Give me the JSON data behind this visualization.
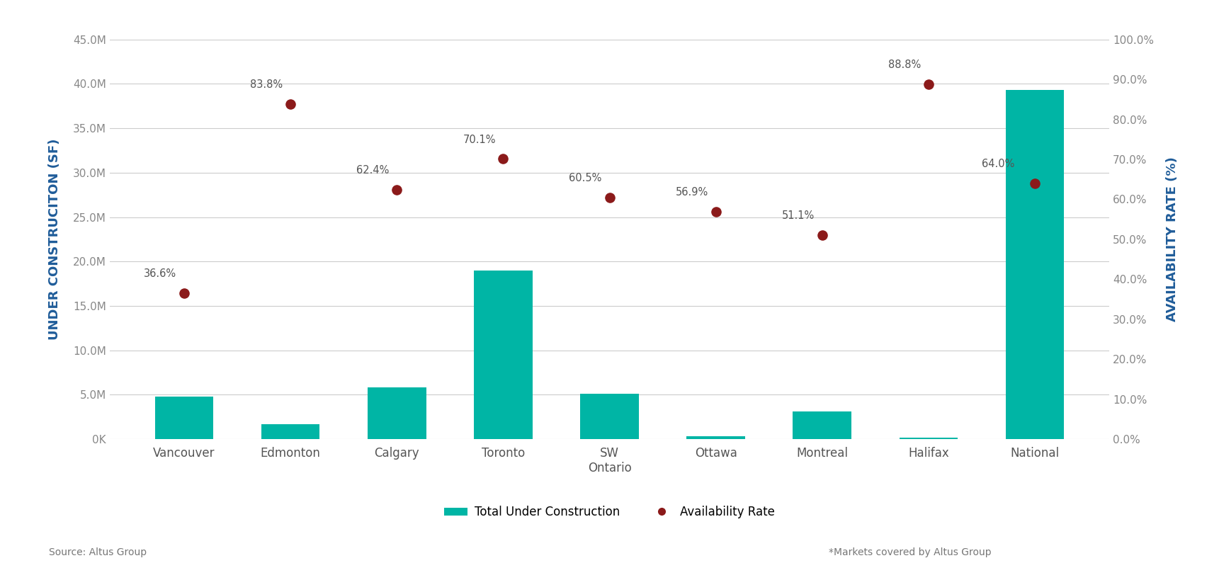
{
  "categories": [
    "Vancouver",
    "Edmonton",
    "Calgary",
    "Toronto",
    "SW\nOntario",
    "Ottawa",
    "Montreal",
    "Halifax",
    "National"
  ],
  "bar_values": [
    4800000,
    1700000,
    5800000,
    19000000,
    5100000,
    300000,
    3100000,
    200000,
    39300000
  ],
  "availability_rates": [
    0.366,
    0.838,
    0.624,
    0.701,
    0.605,
    0.569,
    0.511,
    0.888,
    0.64
  ],
  "availability_labels": [
    "36.6%",
    "83.8%",
    "62.4%",
    "70.1%",
    "60.5%",
    "56.9%",
    "51.1%",
    "88.8%",
    "64.0%"
  ],
  "bar_color": "#00B5A5",
  "dot_color": "#8B1A1A",
  "left_ylabel": "UNDER CONSTRUCITON (SF)",
  "right_ylabel": "AVAILABILITY RATE (%)",
  "label_color": "#1F5C99",
  "left_ylim": [
    0,
    45000000
  ],
  "right_ylim": [
    0,
    1.0
  ],
  "left_yticks": [
    0,
    5000000,
    10000000,
    15000000,
    20000000,
    25000000,
    30000000,
    35000000,
    40000000,
    45000000
  ],
  "left_ytick_labels": [
    "0K",
    "5.0M",
    "10.0M",
    "15.0M",
    "20.0M",
    "25.0M",
    "30.0M",
    "35.0M",
    "40.0M",
    "45.0M"
  ],
  "right_yticks": [
    0.0,
    0.1,
    0.2,
    0.3,
    0.4,
    0.5,
    0.6,
    0.7,
    0.8,
    0.9,
    1.0
  ],
  "right_ytick_labels": [
    "0.0%",
    "10.0%",
    "20.0%",
    "30.0%",
    "40.0%",
    "50.0%",
    "60.0%",
    "70.0%",
    "80.0%",
    "90.0%",
    "100.0%"
  ],
  "legend_bar_label": "Total Under Construction",
  "legend_dot_label": "Availability Rate",
  "source_text": "Source: Altus Group",
  "note_text": "*Markets covered by Altus Group",
  "background_color": "#FFFFFF",
  "tick_label_color": "#888888",
  "grid_color": "#CCCCCC",
  "annotation_color": "#555555",
  "annotation_fontsize": 10.5,
  "bar_width": 0.55,
  "figsize": [
    17.21,
    7.95
  ],
  "dpi": 100
}
